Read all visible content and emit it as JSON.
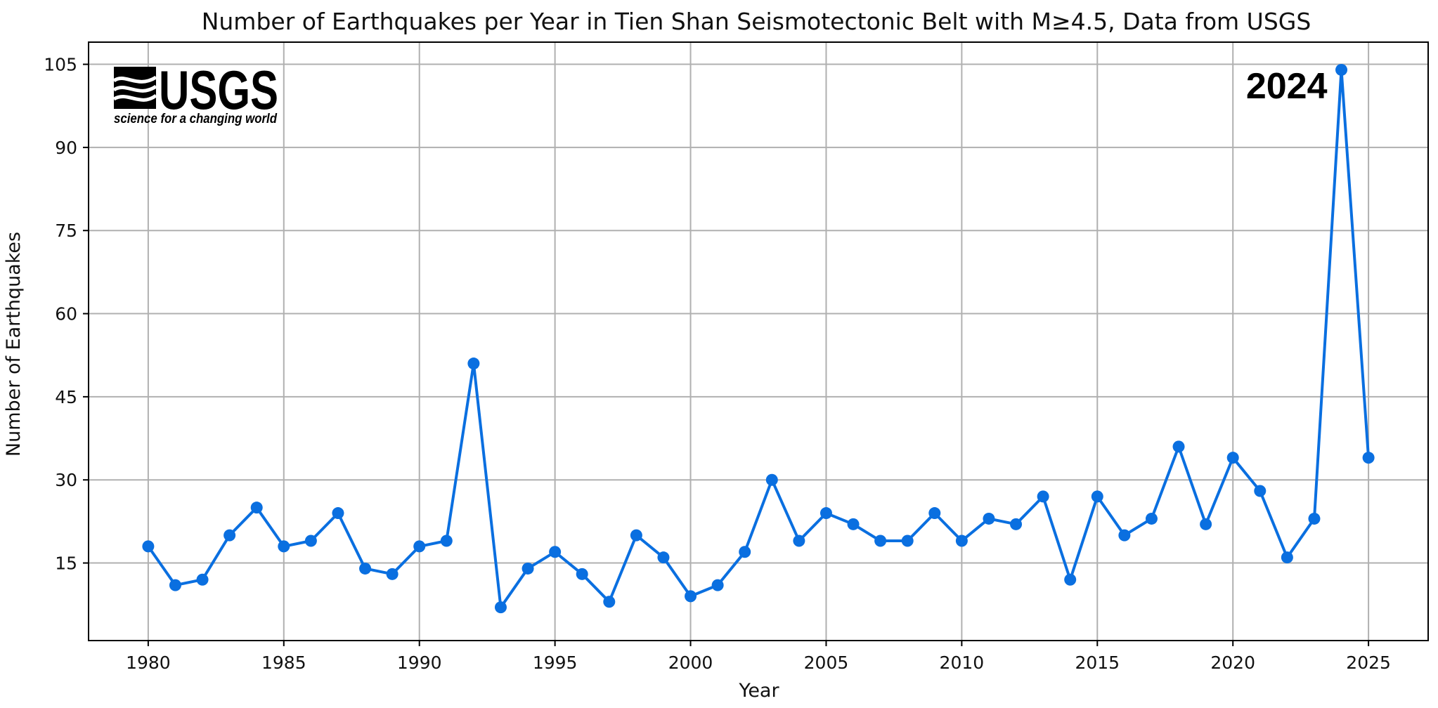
{
  "chart_data": {
    "type": "line",
    "title": "Number of Earthquakes per Year in Tien Shan Seismotectonic Belt with M≥4.5, Data from USGS",
    "xlabel": "Year",
    "ylabel": "Number of Earthquakes",
    "x": [
      1980,
      1981,
      1982,
      1983,
      1984,
      1985,
      1986,
      1987,
      1988,
      1989,
      1990,
      1991,
      1992,
      1993,
      1994,
      1995,
      1996,
      1997,
      1998,
      1999,
      2000,
      2001,
      2002,
      2003,
      2004,
      2005,
      2006,
      2007,
      2008,
      2009,
      2010,
      2011,
      2012,
      2013,
      2014,
      2015,
      2016,
      2017,
      2018,
      2019,
      2020,
      2021,
      2022,
      2023,
      2024,
      2025
    ],
    "series": [
      {
        "values": [
          18,
          11,
          12,
          20,
          25,
          18,
          19,
          24,
          14,
          13,
          18,
          19,
          51,
          7,
          14,
          17,
          13,
          8,
          20,
          16,
          9,
          11,
          17,
          30,
          19,
          24,
          22,
          19,
          19,
          24,
          19,
          23,
          22,
          27,
          12,
          27,
          20,
          23,
          36,
          22,
          34,
          28,
          16,
          23,
          104,
          34
        ]
      }
    ],
    "xlim": [
      1977.8,
      2027.2
    ],
    "ylim": [
      1,
      109
    ],
    "xticks": [
      1980,
      1985,
      1990,
      1995,
      2000,
      2005,
      2010,
      2015,
      2020,
      2025
    ],
    "yticks": [
      15,
      30,
      45,
      60,
      75,
      90,
      105
    ],
    "grid": true,
    "color": "#0a6fe0",
    "annotations": [
      {
        "text": "2024",
        "year": 2024
      }
    ],
    "logo": {
      "name": "usgs-logo",
      "text": "USGS",
      "tagline": "science for a changing world"
    }
  }
}
